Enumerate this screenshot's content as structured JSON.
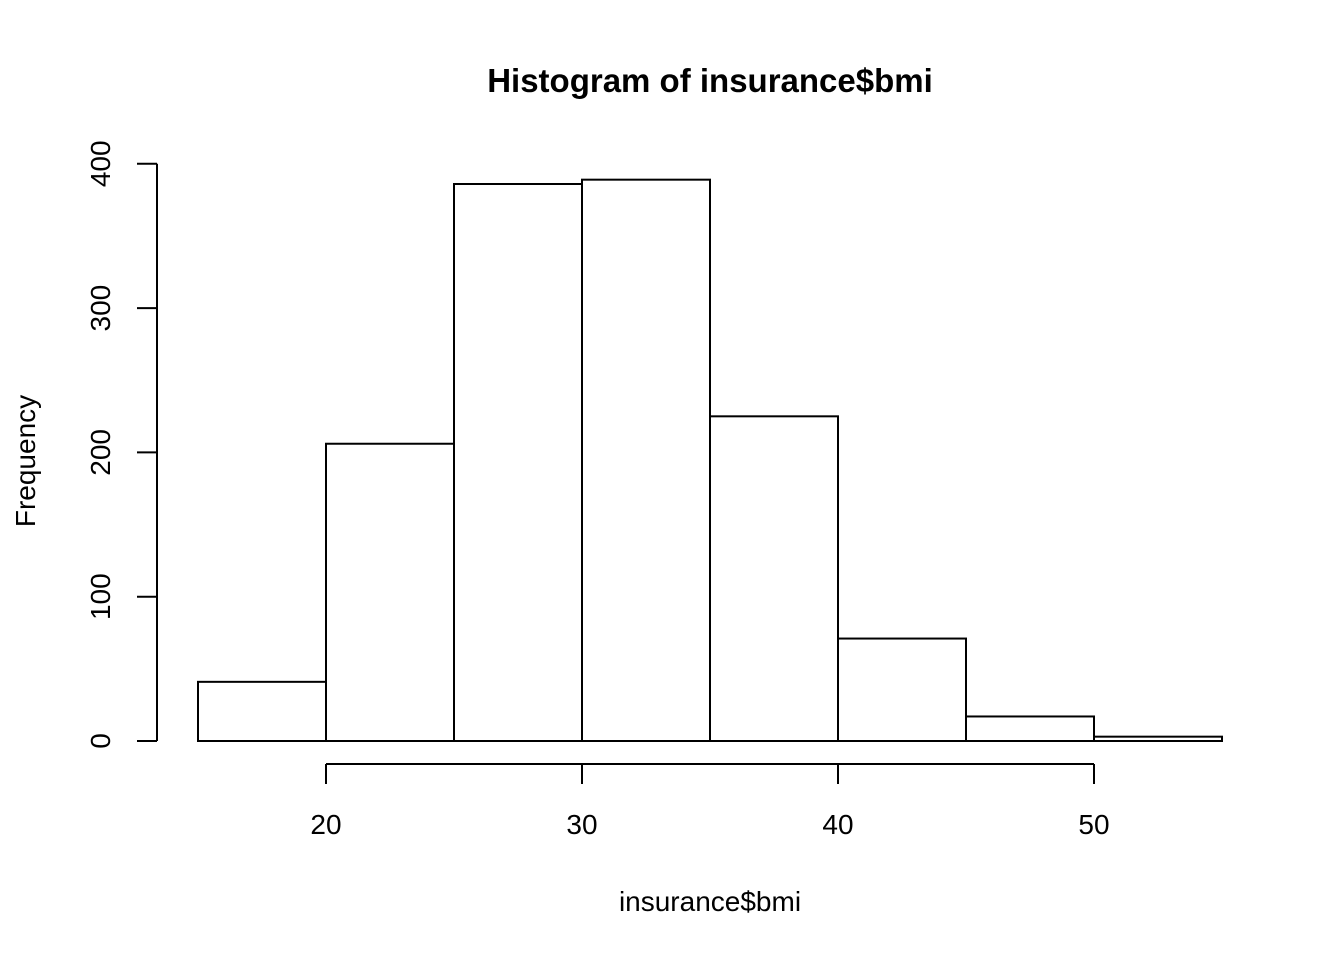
{
  "chart_data": {
    "type": "bar",
    "title": "Histogram of insurance$bmi",
    "xlabel": "insurance$bmi",
    "ylabel": "Frequency",
    "bins": [
      {
        "from": 15,
        "to": 20,
        "count": 41
      },
      {
        "from": 20,
        "to": 25,
        "count": 206
      },
      {
        "from": 25,
        "to": 30,
        "count": 386
      },
      {
        "from": 30,
        "to": 35,
        "count": 389
      },
      {
        "from": 35,
        "to": 40,
        "count": 225
      },
      {
        "from": 40,
        "to": 45,
        "count": 71
      },
      {
        "from": 45,
        "to": 50,
        "count": 17
      },
      {
        "from": 50,
        "to": 55,
        "count": 3
      }
    ],
    "x_ticks": [
      20,
      30,
      40,
      50
    ],
    "y_ticks": [
      0,
      100,
      200,
      300,
      400
    ],
    "xlim": [
      15,
      55
    ],
    "ylim": [
      0,
      400
    ],
    "grid": false,
    "colors": {
      "bar_fill": "#ffffff",
      "bar_stroke": "#000000"
    }
  }
}
